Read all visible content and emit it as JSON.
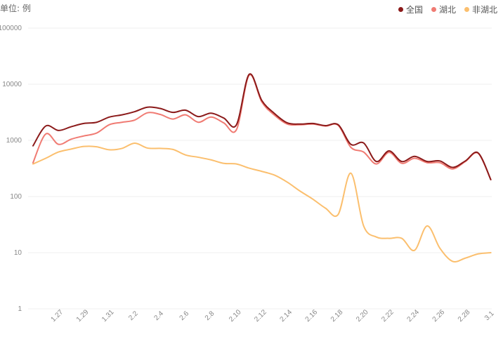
{
  "chart_data": {
    "type": "line",
    "unit_label": "单位: 例",
    "y_scale": "log",
    "ylim": [
      1,
      100000
    ],
    "y_ticks": [
      "1",
      "10",
      "100",
      "1000",
      "10000",
      "100000"
    ],
    "x_tick_labels": [
      "1.27",
      "1.29",
      "1.31",
      "2.2",
      "2.4",
      "2.6",
      "2.8",
      "2.10",
      "2.12",
      "2.14",
      "2.16",
      "2.18",
      "2.20",
      "2.22",
      "2.24",
      "2.26",
      "2.28",
      "3.1"
    ],
    "x": [
      "1.25",
      "1.26",
      "1.27",
      "1.28",
      "1.29",
      "1.30",
      "1.31",
      "2.1",
      "2.2",
      "2.3",
      "2.4",
      "2.5",
      "2.6",
      "2.7",
      "2.8",
      "2.9",
      "2.10",
      "2.11",
      "2.12",
      "2.13",
      "2.14",
      "2.15",
      "2.16",
      "2.17",
      "2.18",
      "2.19",
      "2.20",
      "2.21",
      "2.22",
      "2.23",
      "2.24",
      "2.25",
      "2.26",
      "2.27",
      "2.28",
      "2.29",
      "3.1"
    ],
    "grid": true,
    "legend_position": "top-right",
    "series": [
      {
        "name": "全国",
        "color": "#8b1a1a",
        "values": [
          800,
          1800,
          1500,
          1750,
          2000,
          2100,
          2600,
          2850,
          3250,
          3900,
          3700,
          3150,
          3450,
          2650,
          3050,
          2500,
          1900,
          15000,
          5100,
          3000,
          2050,
          1950,
          2000,
          1830,
          1900,
          850,
          900,
          420,
          650,
          420,
          520,
          420,
          430,
          330,
          430,
          600,
          200
        ]
      },
      {
        "name": "湖北",
        "color": "#f07b73",
        "values": [
          400,
          1300,
          850,
          1050,
          1200,
          1350,
          1900,
          2100,
          2300,
          3100,
          2900,
          2400,
          2850,
          2100,
          2600,
          2050,
          1550,
          14500,
          4800,
          2800,
          1950,
          1900,
          1950,
          1800,
          1850,
          750,
          620,
          380,
          610,
          390,
          480,
          400,
          400,
          310,
          420,
          590,
          200
        ]
      },
      {
        "name": "非湖北",
        "color": "#fbbf6e",
        "values": [
          380,
          480,
          620,
          700,
          780,
          770,
          680,
          720,
          890,
          730,
          720,
          690,
          550,
          500,
          450,
          390,
          380,
          320,
          280,
          240,
          180,
          125,
          90,
          62,
          48,
          260,
          30,
          19,
          18,
          18,
          11,
          30,
          12,
          7,
          8,
          9.5,
          10
        ]
      }
    ]
  }
}
